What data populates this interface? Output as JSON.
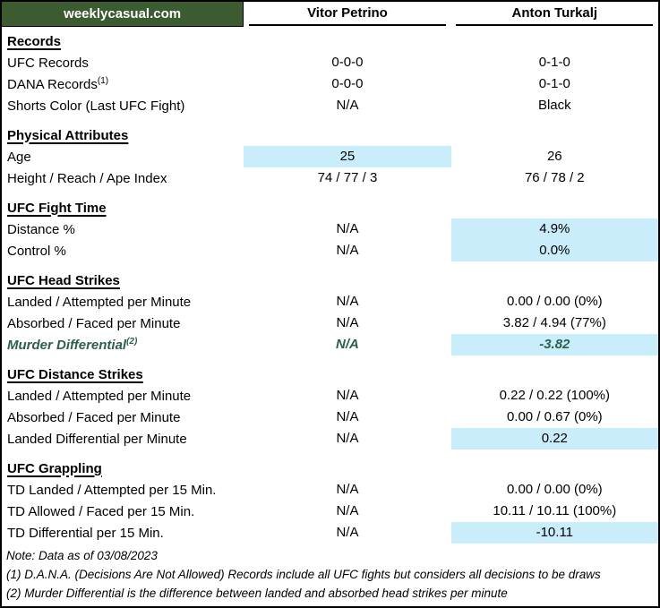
{
  "header": {
    "site": "weeklycasual.com",
    "fighter1": "Vitor Petrino",
    "fighter2": "Anton Turkalj"
  },
  "colors": {
    "header_green": "#3C5B30",
    "highlight_blue": "#CAEDFB",
    "murder_row_green": "#2D5F4B"
  },
  "sections": [
    {
      "title": "Records",
      "rows": [
        {
          "label": "UFC Records",
          "v1": "0-0-0",
          "v2": "0-1-0"
        },
        {
          "label": "DANA Records",
          "sup": "(1)",
          "v1": "0-0-0",
          "v2": "0-1-0"
        },
        {
          "label": "Shorts Color (Last UFC Fight)",
          "v1": "N/A",
          "v2": "Black"
        }
      ]
    },
    {
      "title": "Physical Attributes",
      "rows": [
        {
          "label": "Age",
          "v1": "25",
          "v2": "26"
        },
        {
          "label": "Height / Reach / Ape Index",
          "v1": "74 / 77 / 3",
          "v2": "76 / 78 / 2"
        }
      ]
    },
    {
      "title": "UFC Fight Time",
      "rows": [
        {
          "label": "Distance %",
          "v1": "N/A",
          "v2": "4.9%"
        },
        {
          "label": "Control %",
          "v1": "N/A",
          "v2": "0.0%"
        }
      ]
    },
    {
      "title": "UFC Head Strikes",
      "rows": [
        {
          "label": "Landed / Attempted per Minute",
          "v1": "N/A",
          "v2": "0.00 / 0.00 (0%)"
        },
        {
          "label": "Absorbed / Faced per Minute",
          "v1": "N/A",
          "v2": "3.82 / 4.94 (77%)"
        },
        {
          "label": "Murder Differential",
          "sup": "(2)",
          "v1": "N/A",
          "v2": "-3.82"
        }
      ]
    },
    {
      "title": "UFC Distance Strikes",
      "rows": [
        {
          "label": "Landed / Attempted per Minute",
          "v1": "N/A",
          "v2": "0.22 / 0.22 (100%)"
        },
        {
          "label": "Absorbed / Faced per Minute",
          "v1": "N/A",
          "v2": "0.00 / 0.67 (0%)"
        },
        {
          "label": "Landed Differential per Minute",
          "v1": "N/A",
          "v2": "0.22"
        }
      ]
    },
    {
      "title": "UFC Grappling",
      "rows": [
        {
          "label": "TD Landed / Attempted per 15 Min.",
          "v1": "N/A",
          "v2": "0.00 / 0.00 (0%)"
        },
        {
          "label": "TD Allowed / Faced per 15 Min.",
          "v1": "N/A",
          "v2": "10.11 / 10.11 (100%)"
        },
        {
          "label": "TD Differential per 15 Min.",
          "v1": "N/A",
          "v2": "-10.11"
        }
      ]
    }
  ],
  "notes": [
    "Note: Data as of 03/08/2023",
    "(1) D.A.N.A. (Decisions Are Not Allowed) Records include all UFC fights but considers all decisions to be draws",
    "(2) Murder Differential is the difference between landed and absorbed head strikes per minute"
  ]
}
